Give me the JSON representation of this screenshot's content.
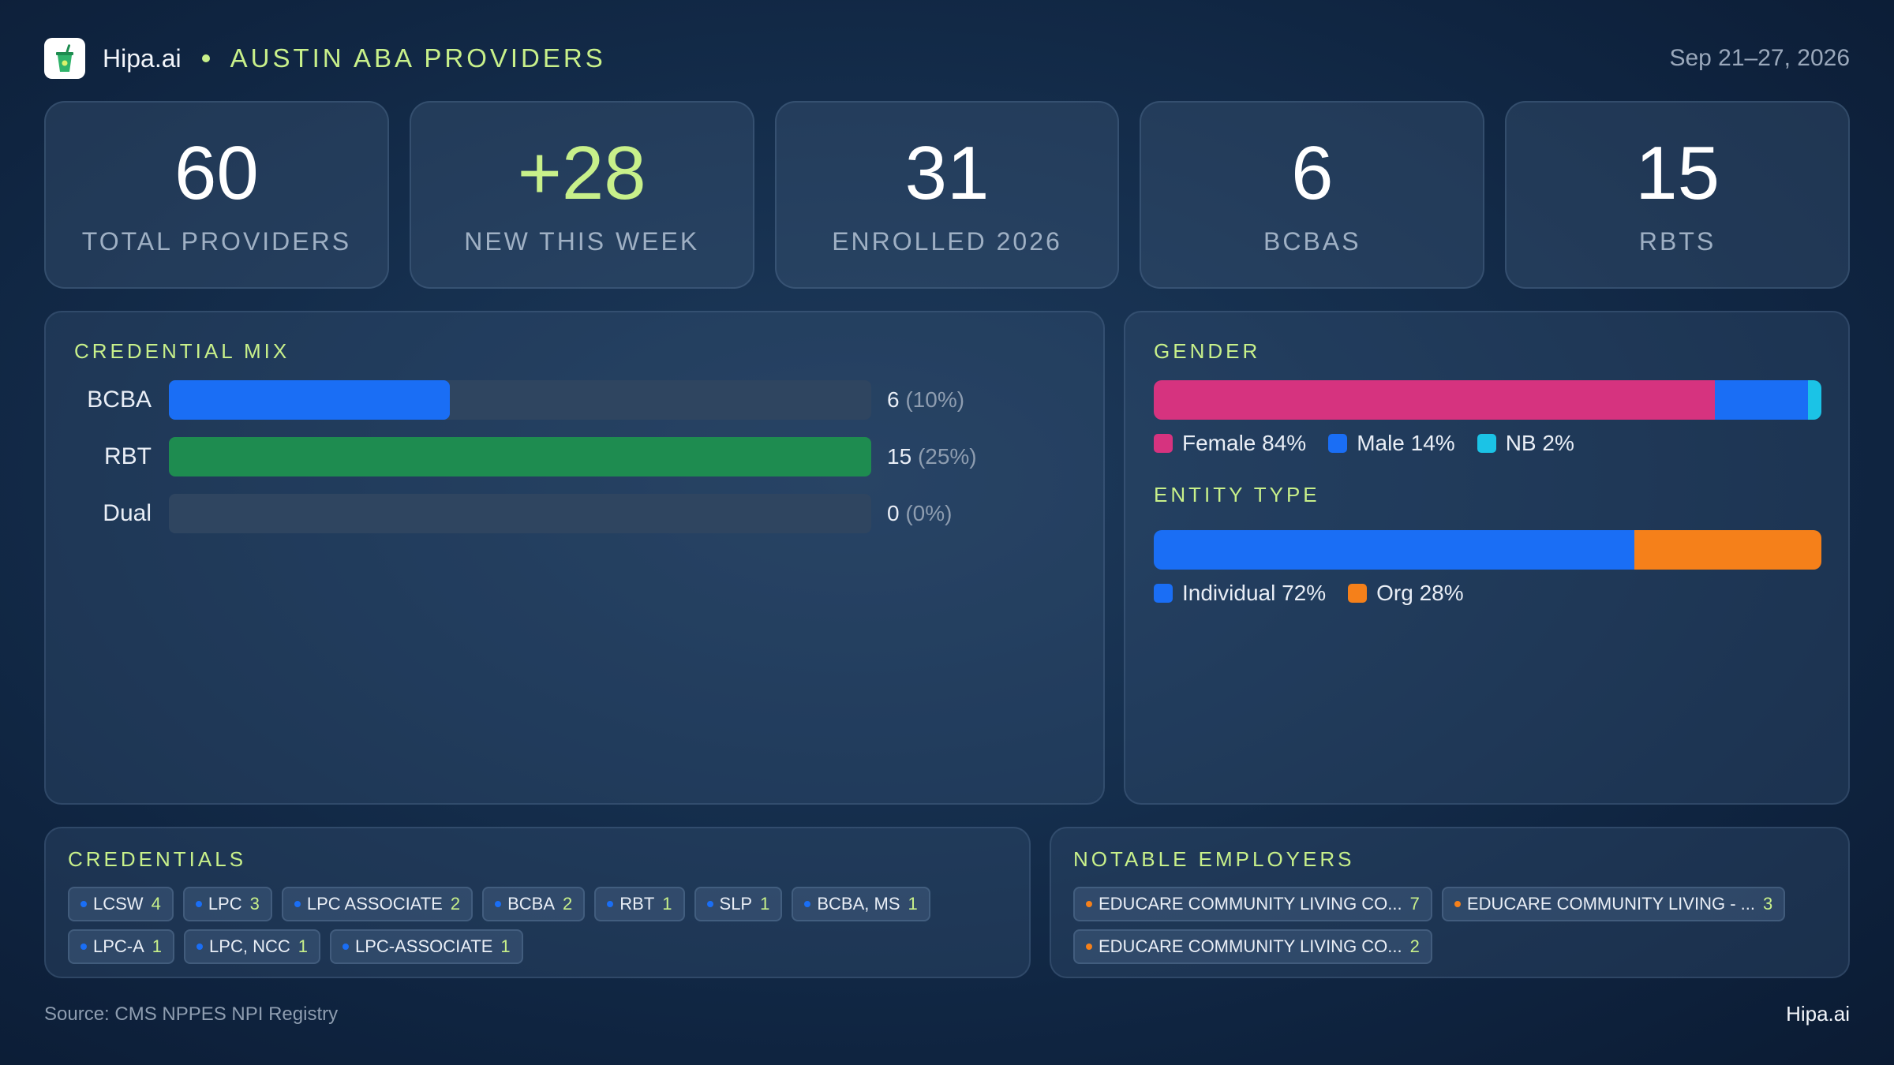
{
  "header": {
    "brand": "Hipa.ai",
    "subtitle": "AUSTIN ABA PROVIDERS",
    "date_range": "Sep 21–27, 2026"
  },
  "kpis": [
    {
      "value": "60",
      "label": "TOTAL PROVIDERS"
    },
    {
      "value": "+28",
      "label": "NEW THIS WEEK"
    },
    {
      "value": "31",
      "label": "ENROLLED 2026"
    },
    {
      "value": "6",
      "label": "BCBAS"
    },
    {
      "value": "15",
      "label": "RBTS"
    }
  ],
  "credential_mix": {
    "title": "CREDENTIAL MIX",
    "rows": [
      {
        "label": "BCBA",
        "count": "6",
        "pct": "(10%)",
        "fraction": 0.4,
        "color": "#1a6ef5"
      },
      {
        "label": "RBT",
        "count": "15",
        "pct": "(25%)",
        "fraction": 1.0,
        "color": "#1e8c50"
      },
      {
        "label": "Dual",
        "count": "0",
        "pct": "(0%)",
        "fraction": 0.0,
        "color": "#2f4560"
      }
    ]
  },
  "gender": {
    "title": "GENDER",
    "segments": [
      {
        "label": "Female 84%",
        "share": 84,
        "color": "#d6337f"
      },
      {
        "label": "Male 14%",
        "share": 14,
        "color": "#1a6ef5"
      },
      {
        "label": "NB 2%",
        "share": 2,
        "color": "#1bc3e6"
      }
    ]
  },
  "entity_type": {
    "title": "ENTITY TYPE",
    "segments": [
      {
        "label": "Individual 72%",
        "share": 72,
        "color": "#1a6ef5"
      },
      {
        "label": "Org 28%",
        "share": 28,
        "color": "#f5801a"
      }
    ]
  },
  "credentials": {
    "title": "CREDENTIALS",
    "dot_color": "#1a6ef5",
    "items": [
      {
        "name": "LCSW",
        "count": "4"
      },
      {
        "name": "LPC",
        "count": "3"
      },
      {
        "name": "LPC ASSOCIATE",
        "count": "2"
      },
      {
        "name": "BCBA",
        "count": "2"
      },
      {
        "name": "RBT",
        "count": "1"
      },
      {
        "name": "SLP",
        "count": "1"
      },
      {
        "name": "BCBA, MS",
        "count": "1"
      },
      {
        "name": "LPC-A",
        "count": "1"
      },
      {
        "name": "LPC, NCC",
        "count": "1"
      },
      {
        "name": "LPC-ASSOCIATE",
        "count": "1"
      }
    ]
  },
  "employers": {
    "title": "NOTABLE EMPLOYERS",
    "dot_color": "#f5801a",
    "items": [
      {
        "name": "EDUCARE COMMUNITY LIVING CO...",
        "count": "7"
      },
      {
        "name": "EDUCARE COMMUNITY LIVING - ...",
        "count": "3"
      },
      {
        "name": "EDUCARE COMMUNITY LIVING CO...",
        "count": "2"
      }
    ]
  },
  "footer": {
    "source": "Source: CMS NPPES NPI Registry",
    "brand": "Hipa.ai"
  },
  "icons": {
    "logo": "cup-icon"
  },
  "colors": {
    "accent": "#c8f08a"
  }
}
